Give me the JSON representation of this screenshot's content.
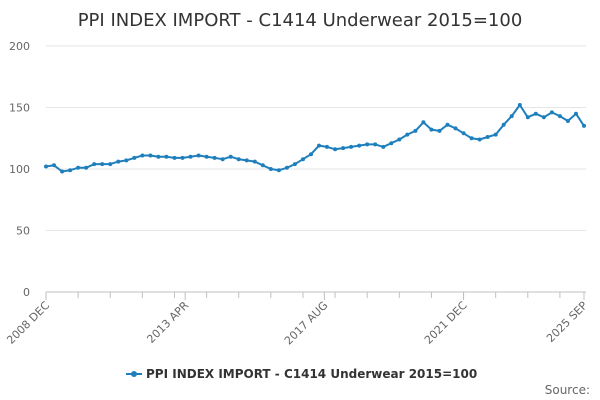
{
  "chart_data": {
    "type": "line",
    "title": "PPI INDEX IMPORT - C1414 Underwear 2015=100",
    "source_label": "Source:",
    "ylim": [
      0,
      200
    ],
    "y_ticks": [
      "0",
      "50",
      "100",
      "150",
      "200"
    ],
    "x_tick_labels": [
      {
        "date": "2008-12",
        "label": "2008 DEC"
      },
      {
        "date": "2013-04",
        "label": "2013 APR"
      },
      {
        "date": "2017-08",
        "label": "2017 AUG"
      },
      {
        "date": "2021-12",
        "label": "2021 DEC"
      },
      {
        "date": "2025-09",
        "label": "2025 SEP"
      }
    ],
    "grid": true,
    "legend_position": "bottom",
    "color": "#1f7fbd",
    "series": [
      {
        "name": "PPI INDEX IMPORT - C1414 Underwear 2015=100",
        "points": [
          [
            "2008-12",
            102
          ],
          [
            "2009-03",
            103
          ],
          [
            "2009-06",
            98
          ],
          [
            "2009-09",
            99
          ],
          [
            "2009-12",
            101
          ],
          [
            "2010-03",
            101
          ],
          [
            "2010-06",
            104
          ],
          [
            "2010-09",
            104
          ],
          [
            "2010-12",
            104
          ],
          [
            "2011-03",
            106
          ],
          [
            "2011-06",
            107
          ],
          [
            "2011-09",
            109
          ],
          [
            "2011-12",
            111
          ],
          [
            "2012-03",
            111
          ],
          [
            "2012-06",
            110
          ],
          [
            "2012-09",
            110
          ],
          [
            "2012-12",
            109
          ],
          [
            "2013-03",
            109
          ],
          [
            "2013-06",
            110
          ],
          [
            "2013-09",
            111
          ],
          [
            "2013-12",
            110
          ],
          [
            "2014-03",
            109
          ],
          [
            "2014-06",
            108
          ],
          [
            "2014-09",
            110
          ],
          [
            "2014-12",
            108
          ],
          [
            "2015-03",
            107
          ],
          [
            "2015-06",
            106
          ],
          [
            "2015-09",
            103
          ],
          [
            "2015-12",
            100
          ],
          [
            "2016-03",
            99
          ],
          [
            "2016-06",
            101
          ],
          [
            "2016-09",
            104
          ],
          [
            "2016-12",
            108
          ],
          [
            "2017-03",
            112
          ],
          [
            "2017-06",
            119
          ],
          [
            "2017-09",
            118
          ],
          [
            "2017-12",
            116
          ],
          [
            "2018-03",
            117
          ],
          [
            "2018-06",
            118
          ],
          [
            "2018-09",
            119
          ],
          [
            "2018-12",
            120
          ],
          [
            "2019-03",
            120
          ],
          [
            "2019-06",
            118
          ],
          [
            "2019-09",
            121
          ],
          [
            "2019-12",
            124
          ],
          [
            "2020-03",
            128
          ],
          [
            "2020-06",
            131
          ],
          [
            "2020-09",
            138
          ],
          [
            "2020-12",
            132
          ],
          [
            "2021-03",
            131
          ],
          [
            "2021-06",
            136
          ],
          [
            "2021-09",
            133
          ],
          [
            "2021-12",
            129
          ],
          [
            "2022-03",
            125
          ],
          [
            "2022-06",
            124
          ],
          [
            "2022-09",
            126
          ],
          [
            "2022-12",
            128
          ],
          [
            "2023-03",
            136
          ],
          [
            "2023-06",
            143
          ],
          [
            "2023-09",
            152
          ],
          [
            "2023-12",
            142
          ],
          [
            "2024-03",
            145
          ],
          [
            "2024-06",
            142
          ],
          [
            "2024-09",
            146
          ],
          [
            "2024-12",
            143
          ],
          [
            "2025-03",
            139
          ],
          [
            "2025-06",
            145
          ],
          [
            "2025-09",
            135
          ]
        ]
      }
    ]
  }
}
